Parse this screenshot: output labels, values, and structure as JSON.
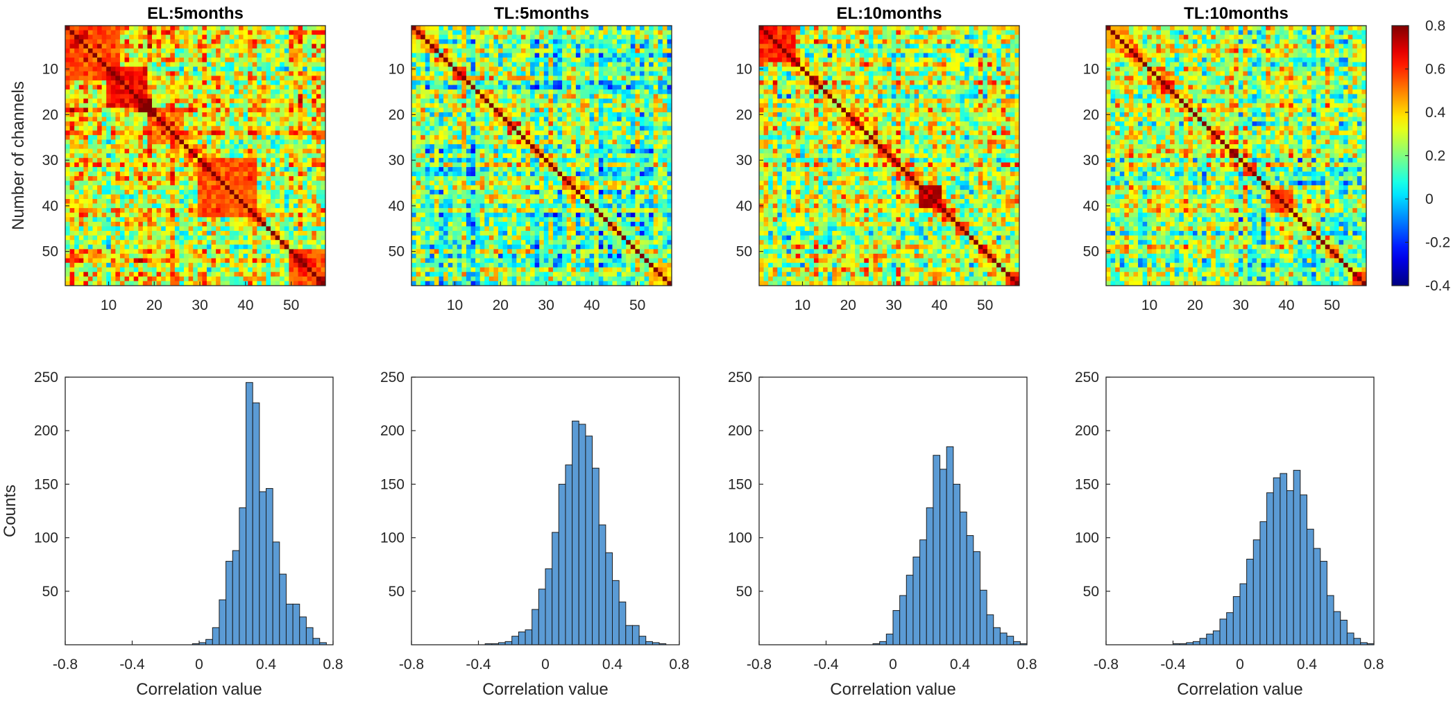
{
  "chart_data": [
    {
      "type": "heatmap",
      "title": "EL:5months",
      "ylabel": "Number of channels",
      "xlabel": "",
      "size": 57,
      "xticks": [
        10,
        20,
        30,
        40,
        50
      ],
      "yticks": [
        10,
        20,
        30,
        40,
        50
      ],
      "mean_offdiag_correlation": 0.33,
      "diagonal_value": 1,
      "high_correlation_blocks": [
        {
          "from": 1,
          "to": 12,
          "value": 0.55
        },
        {
          "from": 10,
          "to": 18,
          "value": 0.65
        },
        {
          "from": 19,
          "to": 26,
          "value": 0.5
        },
        {
          "from": 30,
          "to": 42,
          "value": 0.55
        },
        {
          "from": 50,
          "to": 57,
          "value": 0.55
        }
      ]
    },
    {
      "type": "heatmap",
      "title": "TL:5months",
      "ylabel": "",
      "xlabel": "",
      "size": 57,
      "xticks": [
        10,
        20,
        30,
        40,
        50
      ],
      "yticks": [
        10,
        20,
        30,
        40,
        50
      ],
      "mean_offdiag_correlation": 0.15,
      "diagonal_value": 1,
      "high_correlation_blocks": [
        {
          "from": 1,
          "to": 6,
          "value": 0.35
        },
        {
          "from": 10,
          "to": 12,
          "value": 0.6
        },
        {
          "from": 27,
          "to": 28,
          "value": 0.6
        },
        {
          "from": 53,
          "to": 57,
          "value": 0.4
        }
      ]
    },
    {
      "type": "heatmap",
      "title": "EL:10months",
      "ylabel": "",
      "xlabel": "",
      "size": 57,
      "xticks": [
        10,
        20,
        30,
        40,
        50
      ],
      "yticks": [
        10,
        20,
        30,
        40,
        50
      ],
      "mean_offdiag_correlation": 0.27,
      "diagonal_value": 1,
      "high_correlation_blocks": [
        {
          "from": 1,
          "to": 8,
          "value": 0.6
        },
        {
          "from": 29,
          "to": 30,
          "value": 0.6
        },
        {
          "from": 36,
          "to": 40,
          "value": 0.7
        },
        {
          "from": 44,
          "to": 46,
          "value": 0.55
        }
      ]
    },
    {
      "type": "heatmap",
      "title": "TL:10months",
      "ylabel": "",
      "xlabel": "",
      "size": 57,
      "xticks": [
        10,
        20,
        30,
        40,
        50
      ],
      "yticks": [
        10,
        20,
        30,
        40,
        50
      ],
      "mean_offdiag_correlation": 0.21,
      "diagonal_value": 1,
      "high_correlation_blocks": [
        {
          "from": 1,
          "to": 5,
          "value": 0.45
        },
        {
          "from": 31,
          "to": 33,
          "value": 0.6
        },
        {
          "from": 37,
          "to": 41,
          "value": 0.6
        },
        {
          "from": 55,
          "to": 57,
          "value": 0.6
        }
      ]
    },
    {
      "type": "colorbar",
      "colormap": "jet",
      "clim": [
        -0.4,
        0.8
      ],
      "ticks": [
        0.8,
        0.6,
        0.4,
        0.2,
        0,
        -0.2,
        -0.4
      ],
      "tick_labels": [
        "0.8",
        "0.6",
        "0.4",
        "0.2",
        "0",
        "-0.2",
        "-0.4"
      ]
    },
    {
      "type": "bar",
      "subtype": "histogram",
      "title": "",
      "xlabel": "Correlation value",
      "ylabel": "Counts",
      "xlim": [
        -0.8,
        0.8
      ],
      "ylim": [
        0,
        250
      ],
      "xticks": [
        -0.8,
        -0.4,
        0,
        0.4,
        0.8
      ],
      "xtick_labels": [
        "-0.8",
        "-0.4",
        "0",
        "0.4",
        "0.8"
      ],
      "yticks": [
        50,
        100,
        150,
        200,
        250
      ],
      "bin_width": 0.04,
      "bin_starts": [
        -0.04,
        0,
        0.04,
        0.08,
        0.12,
        0.16,
        0.2,
        0.24,
        0.28,
        0.32,
        0.36,
        0.4,
        0.44,
        0.48,
        0.52,
        0.56,
        0.6,
        0.64,
        0.68,
        0.72
      ],
      "values": [
        1,
        2,
        5,
        16,
        42,
        78,
        88,
        128,
        245,
        226,
        143,
        146,
        96,
        66,
        38,
        38,
        26,
        16,
        6,
        2
      ],
      "bar_color": "#5B9BD5"
    },
    {
      "type": "bar",
      "subtype": "histogram",
      "title": "",
      "xlabel": "Correlation value",
      "ylabel": "",
      "xlim": [
        -0.8,
        0.8
      ],
      "ylim": [
        0,
        250
      ],
      "xticks": [
        -0.8,
        -0.4,
        0,
        0.4,
        0.8
      ],
      "xtick_labels": [
        "-0.8",
        "-0.4",
        "0",
        "0.4",
        "0.8"
      ],
      "yticks": [
        50,
        100,
        150,
        200,
        250
      ],
      "bin_width": 0.04,
      "bin_starts": [
        -0.36,
        -0.32,
        -0.28,
        -0.24,
        -0.2,
        -0.16,
        -0.12,
        -0.08,
        -0.04,
        0,
        0.04,
        0.08,
        0.12,
        0.16,
        0.2,
        0.24,
        0.28,
        0.32,
        0.36,
        0.4,
        0.44,
        0.48,
        0.52,
        0.56,
        0.6,
        0.64,
        0.68
      ],
      "values": [
        1,
        1,
        2,
        3,
        8,
        12,
        14,
        33,
        52,
        71,
        105,
        150,
        168,
        209,
        206,
        195,
        165,
        112,
        86,
        60,
        40,
        18,
        18,
        8,
        3,
        2,
        1
      ],
      "bar_color": "#5B9BD5"
    },
    {
      "type": "bar",
      "subtype": "histogram",
      "title": "",
      "xlabel": "Correlation value",
      "ylabel": "",
      "xlim": [
        -0.8,
        0.8
      ],
      "ylim": [
        0,
        250
      ],
      "xticks": [
        -0.8,
        -0.4,
        0,
        0.4,
        0.8
      ],
      "xtick_labels": [
        "-0.8",
        "-0.4",
        "0",
        "0.4",
        "0.8"
      ],
      "yticks": [
        50,
        100,
        150,
        200,
        250
      ],
      "bin_width": 0.04,
      "bin_starts": [
        -0.12,
        -0.08,
        -0.04,
        0,
        0.04,
        0.08,
        0.12,
        0.16,
        0.2,
        0.24,
        0.28,
        0.32,
        0.36,
        0.4,
        0.44,
        0.48,
        0.52,
        0.56,
        0.6,
        0.64,
        0.68,
        0.72,
        0.76
      ],
      "values": [
        1,
        3,
        10,
        32,
        46,
        65,
        82,
        98,
        128,
        177,
        164,
        185,
        150,
        124,
        102,
        87,
        51,
        28,
        16,
        11,
        8,
        3,
        1
      ],
      "bar_color": "#5B9BD5"
    },
    {
      "type": "bar",
      "subtype": "histogram",
      "title": "",
      "xlabel": "Correlation value",
      "ylabel": "",
      "xlim": [
        -0.8,
        0.8
      ],
      "ylim": [
        0,
        250
      ],
      "xticks": [
        -0.8,
        -0.4,
        0,
        0.4,
        0.8
      ],
      "xtick_labels": [
        "-0.8",
        "-0.4",
        "0",
        "0.4",
        "0.8"
      ],
      "yticks": [
        50,
        100,
        150,
        200,
        250
      ],
      "bin_width": 0.04,
      "bin_starts": [
        -0.4,
        -0.36,
        -0.32,
        -0.28,
        -0.24,
        -0.2,
        -0.16,
        -0.12,
        -0.08,
        -0.04,
        0,
        0.04,
        0.08,
        0.12,
        0.16,
        0.2,
        0.24,
        0.28,
        0.32,
        0.36,
        0.4,
        0.44,
        0.48,
        0.52,
        0.56,
        0.6,
        0.64,
        0.68,
        0.72,
        0.76
      ],
      "values": [
        1,
        1,
        2,
        3,
        6,
        10,
        13,
        24,
        30,
        45,
        57,
        80,
        98,
        115,
        142,
        156,
        160,
        144,
        163,
        140,
        108,
        90,
        78,
        46,
        31,
        23,
        11,
        6,
        2,
        1
      ],
      "bar_color": "#5B9BD5"
    }
  ]
}
